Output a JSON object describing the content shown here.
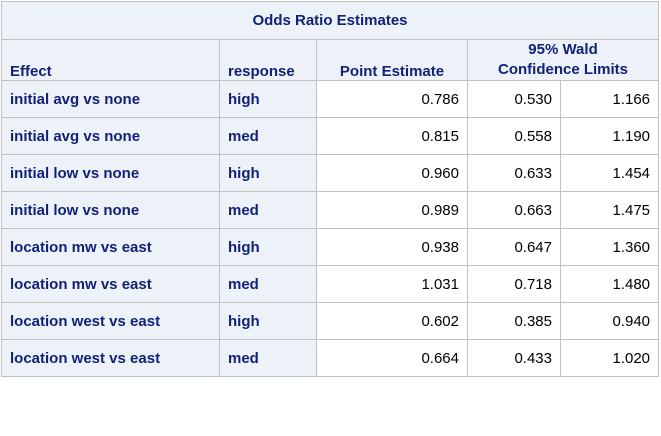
{
  "table": {
    "title": "Odds Ratio Estimates",
    "headers": {
      "effect": "Effect",
      "response": "response",
      "point_estimate": "Point Estimate",
      "ci_line1": "95% Wald",
      "ci_line2": "Confidence Limits"
    },
    "rows": [
      {
        "effect": "initial avg vs none",
        "response": "high",
        "point": "0.786",
        "lower": "0.530",
        "upper": "1.166"
      },
      {
        "effect": "initial avg vs none",
        "response": "med",
        "point": "0.815",
        "lower": "0.558",
        "upper": "1.190"
      },
      {
        "effect": "initial low vs none",
        "response": "high",
        "point": "0.960",
        "lower": "0.633",
        "upper": "1.454"
      },
      {
        "effect": "initial low vs none",
        "response": "med",
        "point": "0.989",
        "lower": "0.663",
        "upper": "1.475"
      },
      {
        "effect": "location mw vs east",
        "response": "high",
        "point": "0.938",
        "lower": "0.647",
        "upper": "1.360"
      },
      {
        "effect": "location mw vs east",
        "response": "med",
        "point": "1.031",
        "lower": "0.718",
        "upper": "1.480"
      },
      {
        "effect": "location west vs east",
        "response": "high",
        "point": "0.602",
        "lower": "0.385",
        "upper": "0.940"
      },
      {
        "effect": "location west vs east",
        "response": "med",
        "point": "0.664",
        "lower": "0.433",
        "upper": "1.020"
      }
    ]
  }
}
